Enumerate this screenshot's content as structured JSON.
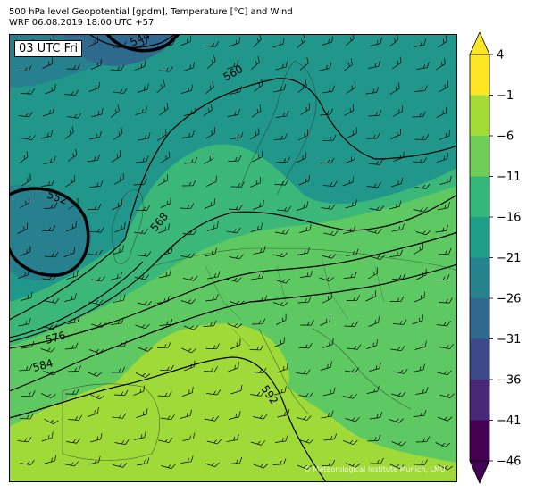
{
  "header": {
    "line1": "500 hPa level Geopotential [gpdm], Temperature [°C] and Wind",
    "line2": "WRF 06.08.2019 18:00 UTC +57"
  },
  "time_label": "03 UTC Fri",
  "credit": "© Meteorological Institute Munich, LMU",
  "colorbar": {
    "ticks": [
      "4",
      "−1",
      "−6",
      "−11",
      "−16",
      "−21",
      "−26",
      "−31",
      "−36",
      "−41",
      "−46"
    ],
    "colors": [
      "#fde725",
      "#a5db36",
      "#6ece58",
      "#35b779",
      "#1f9e89",
      "#26828e",
      "#31688e",
      "#3e4989",
      "#482878",
      "#440154"
    ],
    "top_extend_color": "#fde725",
    "bottom_extend_color": "#440154"
  },
  "contour_labels": {
    "c544": "544",
    "c552": "552",
    "c560": "560",
    "c568": "568",
    "c576": "576",
    "c584": "584",
    "c592": "592"
  }
}
